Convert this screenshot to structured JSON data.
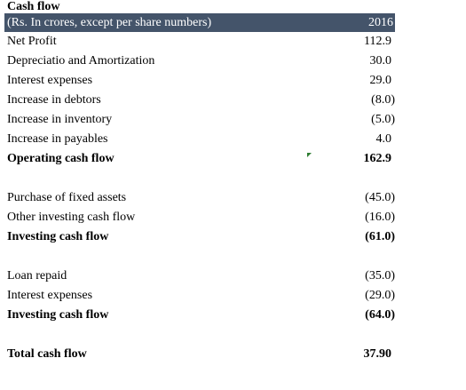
{
  "sheet": {
    "title": "Cash flow",
    "header": {
      "label": "(Rs. In crores, except per share numbers)",
      "year": "2016"
    },
    "operating": [
      {
        "label": "Net Profit",
        "value": "112.9"
      },
      {
        "label": "Depreciatio and Amortization",
        "value": "30.0"
      },
      {
        "label": "Interest expenses",
        "value": "29.0"
      },
      {
        "label": "Increase in debtors",
        "value": "(8.0)"
      },
      {
        "label": "Increase in inventory",
        "value": "(5.0)"
      },
      {
        "label": "Increase in payables",
        "value": "4.0"
      }
    ],
    "operating_total": {
      "label": "Operating cash flow",
      "value": "162.9"
    },
    "investing": [
      {
        "label": "Purchase of fixed assets",
        "value": "(45.0)"
      },
      {
        "label": "Other investing cash flow",
        "value": "(16.0)"
      }
    ],
    "investing_total": {
      "label": "Investing cash flow",
      "value": "(61.0)"
    },
    "financing": [
      {
        "label": "Loan repaid",
        "value": "(35.0)"
      },
      {
        "label": "Interest expenses",
        "value": "(29.0)"
      }
    ],
    "financing_total": {
      "label": "Investing cash flow",
      "value": "(64.0)"
    },
    "grand_total": {
      "label": "Total cash flow",
      "value": "37.90"
    }
  },
  "colors": {
    "header_bg": "#44546a",
    "header_text": "#ffffff",
    "marker": "#2e7d32"
  }
}
